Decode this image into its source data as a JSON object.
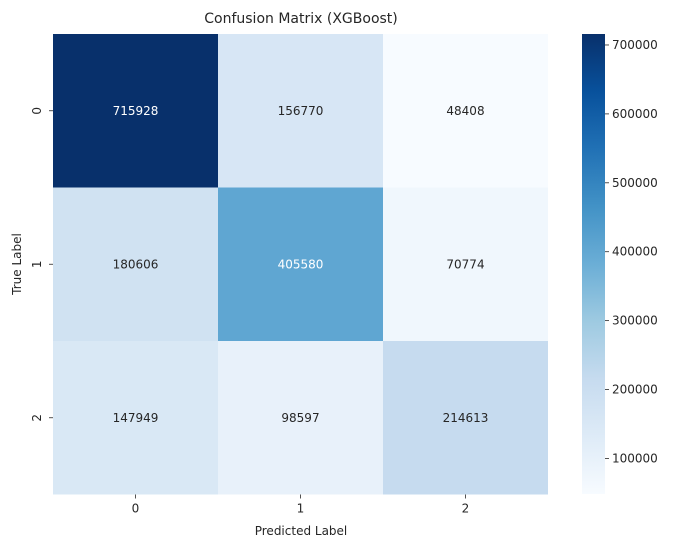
{
  "chart_data": {
    "type": "heatmap",
    "title": "Confusion Matrix (XGBoost)",
    "xlabel": "Predicted Label",
    "ylabel": "True Label",
    "x_categories": [
      "0",
      "1",
      "2"
    ],
    "y_categories": [
      "0",
      "1",
      "2"
    ],
    "matrix": [
      [
        715928,
        156770,
        48408
      ],
      [
        180606,
        405580,
        70774
      ],
      [
        147949,
        98597,
        214613
      ]
    ],
    "colormap": "Blues",
    "color_range": [
      48408,
      715928
    ],
    "colorbar_ticks": [
      100000,
      200000,
      300000,
      400000,
      500000,
      600000,
      700000
    ],
    "colors": {
      "blues_stops": [
        "#f7fbff",
        "#deebf7",
        "#c6dbef",
        "#9ecae1",
        "#6baed6",
        "#4292c6",
        "#2171b5",
        "#08519c",
        "#08306b"
      ],
      "light_text": "#ffffff",
      "dark_text": "#262626"
    }
  }
}
